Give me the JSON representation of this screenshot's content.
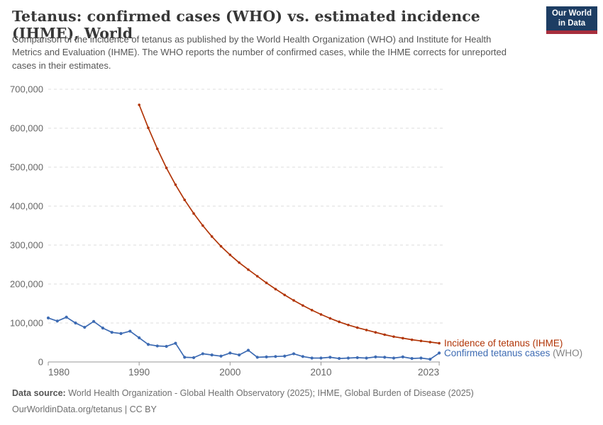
{
  "header": {
    "title": "Tetanus: confirmed cases (WHO) vs. estimated incidence (IHME), World",
    "subtitle": "Comparison of the incidence of tetanus as published by the World Health Organization (WHO) and Institute for Health Metrics and Evaluation (IHME). The WHO reports the number of confirmed cases, while the IHME corrects for unreported cases in their estimates.",
    "logo": {
      "line1": "Our World",
      "line2": "in Data",
      "bg_color": "#1d3d63",
      "stripe_color": "#a72e3d"
    }
  },
  "chart_data": {
    "type": "line",
    "title": "Tetanus: confirmed cases (WHO) vs. estimated incidence (IHME), World",
    "xlabel": "",
    "ylabel": "",
    "xlim": [
      1980,
      2023.07
    ],
    "ylim": [
      0,
      700000
    ],
    "x_ticks": [
      1980,
      1990,
      2000,
      2010,
      2023
    ],
    "y_ticks": [
      0,
      100000,
      200000,
      300000,
      400000,
      500000,
      600000,
      700000
    ],
    "grid": "dashed-horizontal",
    "legend_position": "right-of-line-end",
    "colors": {
      "ihme_red": "#b13507",
      "who_blue": "#3d6bb3",
      "muted_label": "#848484",
      "gridline": "#dcdcdc",
      "axis": "#999999",
      "tick_text": "#666666"
    },
    "series": [
      {
        "id": "ihme",
        "label_main": "Incidence of tetanus (IHME)",
        "label_muted": "",
        "color": "#b13507",
        "marker_radius": 1.8,
        "start_year": 1990,
        "values": [
          660000,
          601000,
          547000,
          498000,
          455000,
          416000,
          381000,
          350000,
          322000,
          297000,
          275000,
          255000,
          237000,
          220000,
          203000,
          187000,
          172000,
          158000,
          145000,
          133000,
          122000,
          112000,
          103000,
          95000,
          88000,
          82000,
          76000,
          70000,
          65000,
          61000,
          57000,
          54000,
          51000,
          48000
        ]
      },
      {
        "id": "who",
        "label_main": "Confirmed tetanus cases",
        "label_muted": " (WHO)",
        "color": "#3d6bb3",
        "marker_radius": 2.1,
        "start_year": 1980,
        "values": [
          113000,
          105000,
          115000,
          100000,
          89000,
          104000,
          87000,
          76000,
          73000,
          79000,
          62000,
          45000,
          41000,
          40000,
          48000,
          12000,
          11000,
          21000,
          18000,
          15000,
          23000,
          18000,
          30000,
          12000,
          13000,
          14000,
          15000,
          21000,
          14000,
          10000,
          10000,
          12000,
          9000,
          10000,
          11000,
          10000,
          13000,
          12000,
          10000,
          13000,
          9000,
          10000,
          7000,
          23000
        ]
      }
    ]
  },
  "footer": {
    "source_label": "Data source:",
    "source_text": " World Health Organization - Global Health Observatory (2025); IHME, Global Burden of Disease (2025)",
    "citation": "OurWorldinData.org/tetanus | CC BY"
  }
}
